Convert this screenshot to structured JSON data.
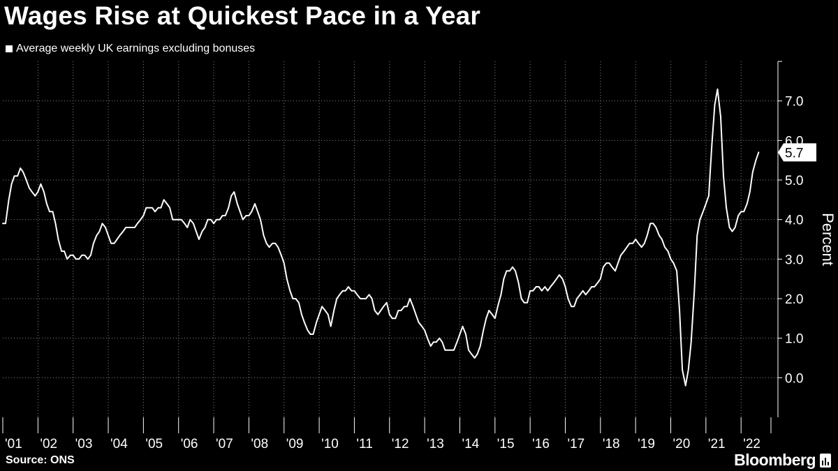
{
  "chart_data": {
    "type": "line",
    "title": "Wages Rise at Quickest Pace in a Year",
    "legend": [
      "Average weekly UK earnings excluding bonuses"
    ],
    "ylabel": "Percent",
    "xlabel": "",
    "source": "Source: ONS",
    "ylim": [
      -1.0,
      8.0
    ],
    "yticks": [
      "0.0",
      "1.0",
      "2.0",
      "3.0",
      "4.0",
      "5.0",
      "6.0",
      "7.0"
    ],
    "ytick_values": [
      0,
      1,
      2,
      3,
      4,
      5,
      6,
      7
    ],
    "xlim": [
      2001.0,
      2022.85
    ],
    "xticks": [
      "'01",
      "'02",
      "'03",
      "'04",
      "'05",
      "'06",
      "'07",
      "'08",
      "'09",
      "'10",
      "'11",
      "'12",
      "'13",
      "'14",
      "'15",
      "'16",
      "'17",
      "'18",
      "'19",
      "'20",
      "'21",
      "'22"
    ],
    "last_value_label": "5.7",
    "series": [
      {
        "name": "Average weekly UK earnings excluding bonuses",
        "x": [
          2001.0,
          2001.08,
          2001.17,
          2001.25,
          2001.33,
          2001.42,
          2001.5,
          2001.58,
          2001.67,
          2001.75,
          2001.83,
          2001.92,
          2002.0,
          2002.08,
          2002.17,
          2002.25,
          2002.33,
          2002.42,
          2002.5,
          2002.58,
          2002.67,
          2002.75,
          2002.83,
          2002.92,
          2003.0,
          2003.08,
          2003.17,
          2003.25,
          2003.33,
          2003.42,
          2003.5,
          2003.58,
          2003.67,
          2003.75,
          2003.83,
          2003.92,
          2004.0,
          2004.08,
          2004.17,
          2004.25,
          2004.33,
          2004.42,
          2004.5,
          2004.58,
          2004.67,
          2004.75,
          2004.83,
          2004.92,
          2005.0,
          2005.08,
          2005.17,
          2005.25,
          2005.33,
          2005.42,
          2005.5,
          2005.58,
          2005.67,
          2005.75,
          2005.83,
          2005.92,
          2006.0,
          2006.08,
          2006.17,
          2006.25,
          2006.33,
          2006.42,
          2006.5,
          2006.58,
          2006.67,
          2006.75,
          2006.83,
          2006.92,
          2007.0,
          2007.08,
          2007.17,
          2007.25,
          2007.33,
          2007.42,
          2007.5,
          2007.58,
          2007.67,
          2007.75,
          2007.83,
          2007.92,
          2008.0,
          2008.08,
          2008.17,
          2008.25,
          2008.33,
          2008.42,
          2008.5,
          2008.58,
          2008.67,
          2008.75,
          2008.83,
          2008.92,
          2009.0,
          2009.08,
          2009.17,
          2009.25,
          2009.33,
          2009.42,
          2009.5,
          2009.58,
          2009.67,
          2009.75,
          2009.83,
          2009.92,
          2010.0,
          2010.08,
          2010.17,
          2010.25,
          2010.33,
          2010.42,
          2010.5,
          2010.58,
          2010.67,
          2010.75,
          2010.83,
          2010.92,
          2011.0,
          2011.08,
          2011.17,
          2011.25,
          2011.33,
          2011.42,
          2011.5,
          2011.58,
          2011.67,
          2011.75,
          2011.83,
          2011.92,
          2012.0,
          2012.08,
          2012.17,
          2012.25,
          2012.33,
          2012.42,
          2012.5,
          2012.58,
          2012.67,
          2012.75,
          2012.83,
          2012.92,
          2013.0,
          2013.08,
          2013.17,
          2013.25,
          2013.33,
          2013.42,
          2013.5,
          2013.58,
          2013.67,
          2013.75,
          2013.83,
          2013.92,
          2014.0,
          2014.08,
          2014.17,
          2014.25,
          2014.33,
          2014.42,
          2014.5,
          2014.58,
          2014.67,
          2014.75,
          2014.83,
          2014.92,
          2015.0,
          2015.08,
          2015.17,
          2015.25,
          2015.33,
          2015.42,
          2015.5,
          2015.58,
          2015.67,
          2015.75,
          2015.83,
          2015.92,
          2016.0,
          2016.08,
          2016.17,
          2016.25,
          2016.33,
          2016.42,
          2016.5,
          2016.58,
          2016.67,
          2016.75,
          2016.83,
          2016.92,
          2017.0,
          2017.08,
          2017.17,
          2017.25,
          2017.33,
          2017.42,
          2017.5,
          2017.58,
          2017.67,
          2017.75,
          2017.83,
          2017.92,
          2018.0,
          2018.08,
          2018.17,
          2018.25,
          2018.33,
          2018.42,
          2018.5,
          2018.58,
          2018.67,
          2018.75,
          2018.83,
          2018.92,
          2019.0,
          2019.08,
          2019.17,
          2019.25,
          2019.33,
          2019.42,
          2019.5,
          2019.58,
          2019.67,
          2019.75,
          2019.83,
          2019.92,
          2020.0,
          2020.08,
          2020.17,
          2020.25,
          2020.33,
          2020.42,
          2020.5,
          2020.58,
          2020.67,
          2020.75,
          2020.83,
          2020.92,
          2021.0,
          2021.08,
          2021.17,
          2021.25,
          2021.33,
          2021.42,
          2021.5,
          2021.58,
          2021.67,
          2021.75,
          2021.83,
          2021.92,
          2022.0,
          2022.08,
          2022.17,
          2022.25,
          2022.33,
          2022.42,
          2022.5
        ],
        "values": [
          3.9,
          3.9,
          4.5,
          4.9,
          5.1,
          5.1,
          5.3,
          5.2,
          5.0,
          4.8,
          4.7,
          4.6,
          4.7,
          4.9,
          4.7,
          4.4,
          4.2,
          4.2,
          3.9,
          3.5,
          3.2,
          3.2,
          3.0,
          3.1,
          3.1,
          3.0,
          3.0,
          3.1,
          3.1,
          3.0,
          3.1,
          3.4,
          3.6,
          3.7,
          3.9,
          3.8,
          3.6,
          3.4,
          3.4,
          3.5,
          3.6,
          3.7,
          3.8,
          3.8,
          3.8,
          3.8,
          3.9,
          4.0,
          4.1,
          4.3,
          4.3,
          4.3,
          4.2,
          4.3,
          4.3,
          4.5,
          4.4,
          4.3,
          4.0,
          4.0,
          4.0,
          4.0,
          3.9,
          3.8,
          4.0,
          3.9,
          3.7,
          3.5,
          3.7,
          3.8,
          4.0,
          4.0,
          3.9,
          4.0,
          4.0,
          4.1,
          4.1,
          4.3,
          4.6,
          4.7,
          4.4,
          4.2,
          4.0,
          4.1,
          4.1,
          4.2,
          4.4,
          4.2,
          4.0,
          3.6,
          3.4,
          3.3,
          3.4,
          3.4,
          3.3,
          3.1,
          2.9,
          2.5,
          2.2,
          2.0,
          2.0,
          1.9,
          1.6,
          1.4,
          1.2,
          1.1,
          1.1,
          1.4,
          1.6,
          1.8,
          1.7,
          1.6,
          1.3,
          1.7,
          2.0,
          2.1,
          2.2,
          2.2,
          2.3,
          2.2,
          2.2,
          2.1,
          2.0,
          2.0,
          2.0,
          2.1,
          2.0,
          1.7,
          1.6,
          1.7,
          1.8,
          1.9,
          1.6,
          1.5,
          1.5,
          1.7,
          1.7,
          1.8,
          1.8,
          2.0,
          1.8,
          1.6,
          1.4,
          1.3,
          1.2,
          1.0,
          0.8,
          0.9,
          0.9,
          1.0,
          0.9,
          0.7,
          0.7,
          0.7,
          0.7,
          0.9,
          1.1,
          1.3,
          1.1,
          0.7,
          0.6,
          0.5,
          0.6,
          0.8,
          1.2,
          1.5,
          1.7,
          1.6,
          1.5,
          1.8,
          2.1,
          2.5,
          2.7,
          2.7,
          2.8,
          2.7,
          2.4,
          2.0,
          1.9,
          1.9,
          2.2,
          2.2,
          2.3,
          2.3,
          2.2,
          2.3,
          2.2,
          2.3,
          2.4,
          2.5,
          2.6,
          2.5,
          2.3,
          2.0,
          1.8,
          1.8,
          2.0,
          2.1,
          2.2,
          2.1,
          2.2,
          2.3,
          2.3,
          2.4,
          2.5,
          2.8,
          2.9,
          2.9,
          2.8,
          2.7,
          2.9,
          3.1,
          3.2,
          3.3,
          3.4,
          3.4,
          3.5,
          3.4,
          3.3,
          3.4,
          3.6,
          3.9,
          3.9,
          3.8,
          3.6,
          3.5,
          3.3,
          3.2,
          3.0,
          2.9,
          2.7,
          1.7,
          0.2,
          -0.2,
          0.2,
          0.9,
          2.2,
          3.6,
          4.0,
          4.2,
          4.4,
          4.6,
          5.9,
          6.9,
          7.3,
          6.6,
          5.1,
          4.3,
          3.8,
          3.7,
          3.8,
          4.1,
          4.2,
          4.2,
          4.4,
          4.7,
          5.2,
          5.5,
          5.7
        ]
      }
    ]
  },
  "colors": {
    "background": "#000000",
    "foreground": "#ffffff",
    "grid": "#888888",
    "label_box_text": "#000000"
  },
  "branding": {
    "name": "Bloomberg"
  }
}
